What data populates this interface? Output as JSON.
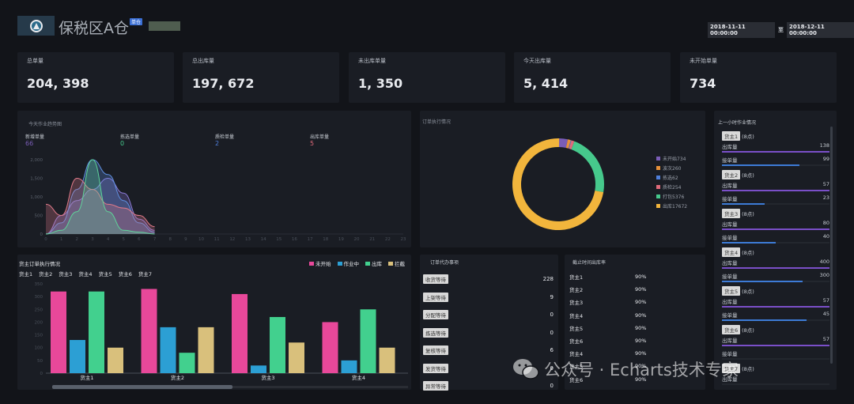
{
  "header": {
    "logo_icon": "warehouse-logo-icon",
    "title": "保税区A仓",
    "badge": "单仓",
    "date_from": "2018-11-11 00:00:00",
    "date_sep": "至",
    "date_to": "2018-12-11 00:00:00"
  },
  "kpis": [
    {
      "label": "总单量",
      "value": "204, 398"
    },
    {
      "label": "总出库量",
      "value": "197, 672"
    },
    {
      "label": "未出库单量",
      "value": "1, 350"
    },
    {
      "label": "今天出库量",
      "value": "5, 414"
    },
    {
      "label": "未开始单量",
      "value": "734"
    }
  ],
  "trend": {
    "title": "今天作业趋势图",
    "metrics": [
      {
        "label": "新增单量",
        "value": "66",
        "color": "#7a5db7"
      },
      {
        "label": "拣选单量",
        "value": "0",
        "color": "#46c98c"
      },
      {
        "label": "质检单量",
        "value": "2",
        "color": "#4f7fdb"
      },
      {
        "label": "出库单量",
        "value": "5",
        "color": "#e06a7a"
      }
    ],
    "chart_data": {
      "type": "area",
      "yticks": [
        "0",
        "500",
        "1,000",
        "1,500",
        "2,000"
      ],
      "ylim": [
        0,
        2000
      ],
      "x": [
        0,
        1,
        2,
        3,
        4,
        5,
        6,
        7,
        8,
        9,
        10,
        11,
        12,
        13,
        14,
        15,
        16,
        17,
        18,
        19,
        20,
        21,
        22,
        23
      ],
      "xticks": [
        "0",
        "1",
        "2",
        "3",
        "4",
        "5",
        "6",
        "7",
        "8",
        "9",
        "10",
        "11",
        "12",
        "13",
        "14",
        "15",
        "16",
        "17",
        "18",
        "19",
        "20",
        "21",
        "22",
        "23"
      ],
      "series": [
        {
          "color": "#8c7bd8",
          "values": [
            0,
            500,
            900,
            1200,
            1500,
            1100,
            400,
            100,
            null,
            null,
            null,
            null,
            null,
            null,
            null,
            null,
            null,
            null,
            null,
            null,
            null,
            null,
            null,
            null
          ]
        },
        {
          "color": "#5f8fe0",
          "values": [
            0,
            300,
            1200,
            2000,
            1600,
            900,
            300,
            50,
            null,
            null,
            null,
            null,
            null,
            null,
            null,
            null,
            null,
            null,
            null,
            null,
            null,
            null,
            null,
            null
          ]
        },
        {
          "color": "#e07a8a",
          "values": [
            800,
            500,
            1500,
            1200,
            800,
            700,
            500,
            200,
            null,
            null,
            null,
            null,
            null,
            null,
            null,
            null,
            null,
            null,
            null,
            null,
            null,
            null,
            null,
            null
          ]
        },
        {
          "color": "#5fd49a",
          "values": [
            0,
            100,
            600,
            2000,
            600,
            100,
            50,
            0,
            null,
            null,
            null,
            null,
            null,
            null,
            null,
            null,
            null,
            null,
            null,
            null,
            null,
            null,
            null,
            null
          ]
        }
      ]
    }
  },
  "order_status": {
    "title": "订单执行情况",
    "chart_data": {
      "type": "pie",
      "labels": [
        "未开始734",
        "波次260",
        "拣选62",
        "质检254",
        "打包5376",
        "出库17672"
      ],
      "values": [
        734,
        260,
        62,
        254,
        5376,
        17672
      ],
      "colors": [
        "#7a5db7",
        "#e8913a",
        "#4f7fdb",
        "#e06a7a",
        "#46c98c",
        "#f2b53c"
      ]
    }
  },
  "hourly": {
    "title": "上一小时作业情况",
    "out_label": "出库量",
    "in_label": "接单量",
    "owners": [
      {
        "name": "货主1",
        "time": "(8点)",
        "out": "138",
        "in": "99",
        "out_frac": 1.0,
        "in_frac": 0.72
      },
      {
        "name": "货主2",
        "time": "(8点)",
        "out": "57",
        "in": "23",
        "out_frac": 1.0,
        "in_frac": 0.4
      },
      {
        "name": "货主3",
        "time": "(8点)",
        "out": "80",
        "in": "40",
        "out_frac": 1.0,
        "in_frac": 0.5
      },
      {
        "name": "货主4",
        "time": "(8点)",
        "out": "400",
        "in": "300",
        "out_frac": 1.0,
        "in_frac": 0.75
      },
      {
        "name": "货主5",
        "time": "(8点)",
        "out": "57",
        "in": "45",
        "out_frac": 1.0,
        "in_frac": 0.79
      },
      {
        "name": "货主6",
        "time": "(8点)",
        "out": "57",
        "in": "",
        "out_frac": 1.0,
        "in_frac": 0
      },
      {
        "name": "货主7",
        "time": "(8点)",
        "out": "",
        "in": "",
        "out_frac": 0,
        "in_frac": 0
      }
    ]
  },
  "owner_orders": {
    "title": "货主订单执行情况",
    "owner_tabs": [
      "货主1",
      "货主2",
      "货主3",
      "货主4",
      "货主5",
      "货主6",
      "货主7"
    ],
    "chart_data": {
      "type": "bar",
      "categories": [
        "货主1",
        "货主2",
        "货主3",
        "货主4"
      ],
      "ylim": [
        0,
        350
      ],
      "yticks": [
        "0",
        "50",
        "100",
        "150",
        "200",
        "250",
        "300",
        "350"
      ],
      "series": [
        {
          "name": "未开始",
          "color": "#e8489a",
          "values": [
            320,
            330,
            310,
            200
          ]
        },
        {
          "name": "作业中",
          "color": "#2c9fd4",
          "values": [
            130,
            180,
            30,
            50
          ]
        },
        {
          "name": "出库",
          "color": "#42d08e",
          "values": [
            320,
            80,
            220,
            250
          ]
        },
        {
          "name": "拦截",
          "color": "#d9c07c",
          "values": [
            100,
            180,
            120,
            100
          ]
        }
      ]
    }
  },
  "pending": {
    "title": "订单代办事项",
    "items": [
      {
        "label": "收货等待",
        "value": "228"
      },
      {
        "label": "上架等待",
        "value": "9"
      },
      {
        "label": "分配等待",
        "value": "0"
      },
      {
        "label": "拣选等待",
        "value": "0"
      },
      {
        "label": "复核等待",
        "value": "6"
      },
      {
        "label": "发货等待",
        "value": "0"
      },
      {
        "label": "异常等待",
        "value": "0"
      }
    ]
  },
  "deadline": {
    "title": "截止时间出库率",
    "rows": [
      {
        "name": "货主1",
        "rate": "90%"
      },
      {
        "name": "货主2",
        "rate": "90%"
      },
      {
        "name": "货主3",
        "rate": "90%"
      },
      {
        "name": "货主4",
        "rate": "90%"
      },
      {
        "name": "货主5",
        "rate": "90%"
      },
      {
        "name": "货主6",
        "rate": "90%"
      },
      {
        "name": "货主4",
        "rate": "90%"
      },
      {
        "name": "货主5",
        "rate": "90%"
      },
      {
        "name": "货主6",
        "rate": "90%"
      }
    ]
  },
  "watermark": {
    "text": "公众号 · Echarts技术专家",
    "icon": "wechat-icon"
  }
}
